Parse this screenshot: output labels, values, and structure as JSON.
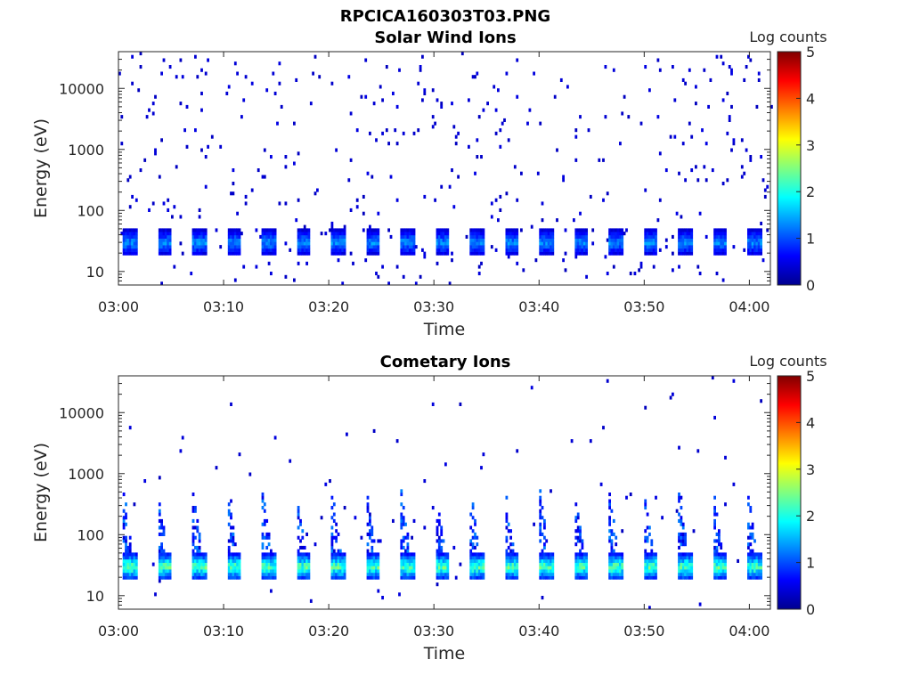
{
  "figure": {
    "title": "RPCICA160303T03.PNG"
  },
  "chart_data": [
    {
      "type": "heatmap",
      "title": "Solar Wind Ions",
      "xlabel": "Time",
      "ylabel": "Energy (eV)",
      "x_ticks": [
        "03:00",
        "03:10",
        "03:20",
        "03:30",
        "03:40",
        "03:50",
        "04:00"
      ],
      "xlim": [
        "03:00",
        "04:02"
      ],
      "y_scale": "log",
      "y_ticks": [
        10,
        100,
        1000,
        10000
      ],
      "y_tick_labels": [
        "10",
        "100",
        "1000",
        "10000"
      ],
      "ylim": [
        6,
        40000
      ],
      "colorbar": {
        "label": "Log counts",
        "ticks": [
          "0",
          "1",
          "2",
          "3",
          "4",
          "5"
        ],
        "range": [
          0,
          5
        ],
        "colormap": "jet"
      },
      "pattern": {
        "band_center_energy_eV": 30,
        "band_peak_log_counts": 1.6,
        "burst_period_min": 3.3,
        "background_log_counts": 0.3
      }
    },
    {
      "type": "heatmap",
      "title": "Cometary Ions",
      "xlabel": "Time",
      "ylabel": "Energy (eV)",
      "x_ticks": [
        "03:00",
        "03:10",
        "03:20",
        "03:30",
        "03:40",
        "03:50",
        "04:00"
      ],
      "xlim": [
        "03:00",
        "04:02"
      ],
      "y_scale": "log",
      "y_ticks": [
        10,
        100,
        1000,
        10000
      ],
      "y_tick_labels": [
        "10",
        "100",
        "1000",
        "10000"
      ],
      "ylim": [
        6,
        40000
      ],
      "colorbar": {
        "label": "Log counts",
        "ticks": [
          "0",
          "1",
          "2",
          "3",
          "4",
          "5"
        ],
        "range": [
          0,
          5
        ],
        "colormap": "jet"
      },
      "pattern": {
        "band_center_energy_eV": 30,
        "band_peak_log_counts": 2.8,
        "burst_period_min": 3.3,
        "background_log_counts": 0.3
      }
    }
  ]
}
